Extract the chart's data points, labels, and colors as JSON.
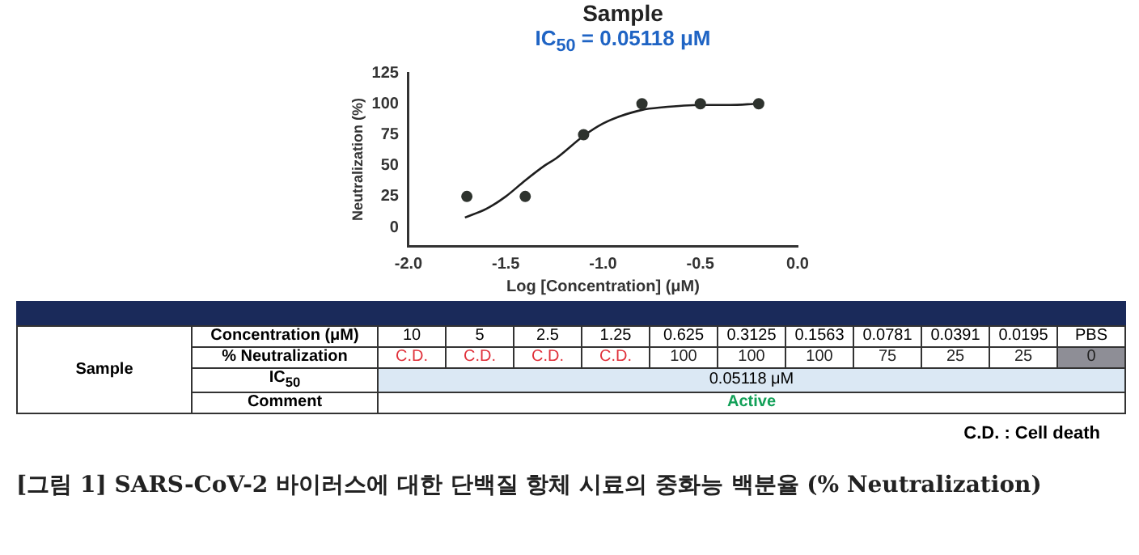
{
  "chart_data": [
    {
      "type": "scatter",
      "title": "Sample",
      "subtitle": "IC$_{50}$ = 0.05118 μM",
      "xlabel": "Log [Concentration] (μM)",
      "ylabel": "Neutralization (%)",
      "xlim": [
        -2.0,
        0.0
      ],
      "xticks": [
        {
          "value": -2,
          "label": "-2.0"
        },
        {
          "value": -1.5,
          "label": "-1.5"
        },
        {
          "value": -1,
          "label": "-1.0"
        },
        {
          "value": -0.5,
          "label": "-0.5"
        },
        {
          "value": 0,
          "label": "0.0"
        }
      ],
      "ylim": [
        -15,
        125
      ],
      "yticks": [
        0,
        25,
        50,
        75,
        100,
        125
      ],
      "grid": false,
      "legend": false,
      "series": [
        {
          "type": "scatter",
          "marker": "circle",
          "color": "#2e332e",
          "x": [
            -1.7,
            -1.4,
            -1.1,
            -0.8,
            -0.5,
            -0.2
          ],
          "values": [
            25,
            25,
            75,
            100,
            100,
            100
          ]
        },
        {
          "type": "line",
          "marker": "none",
          "color": "#1e1e1e",
          "x": [
            -1.71,
            -1.6,
            -1.5,
            -1.4,
            -1.3,
            -1.24,
            -1.1,
            -1.0,
            -0.91,
            -0.8,
            -0.7,
            -0.5,
            -0.35,
            -0.21
          ],
          "values": [
            8,
            15,
            25,
            38,
            50,
            56,
            74,
            84,
            90,
            95,
            97,
            99,
            99,
            100
          ]
        }
      ]
    },
    {
      "type": "other",
      "categories": [
        "10",
        "5",
        "2.5",
        "1.25",
        "0.625",
        "0.3125",
        "0.1563",
        "0.0781",
        "0.0391",
        "0.0195",
        "PBS"
      ],
      "value_labels": [
        "C.D.",
        "C.D.",
        "C.D.",
        "C.D.",
        "100",
        "100",
        "100",
        "75",
        "25",
        "25",
        "0"
      ],
      "colors": [
        "#ffffff",
        "#ffffff",
        "#ffffff",
        "#ffffff",
        "#ffffff",
        "#ffffff",
        "#ffffff",
        "#ffffff",
        "#ffffff",
        "#ffffff",
        "#8e8e96"
      ],
      "annotations": [
        "Sample",
        "Concentration (μM)",
        "% Neutralization",
        "IC$_{50}$",
        "0.05118 μM",
        "Comment",
        "Active",
        "C.D. : Cell death",
        "[그림 1] SARS-CoV-2 바이러스에 대한 단백질 항체 시료의 중화능 백분율 (% Neutralization)"
      ]
    }
  ]
}
